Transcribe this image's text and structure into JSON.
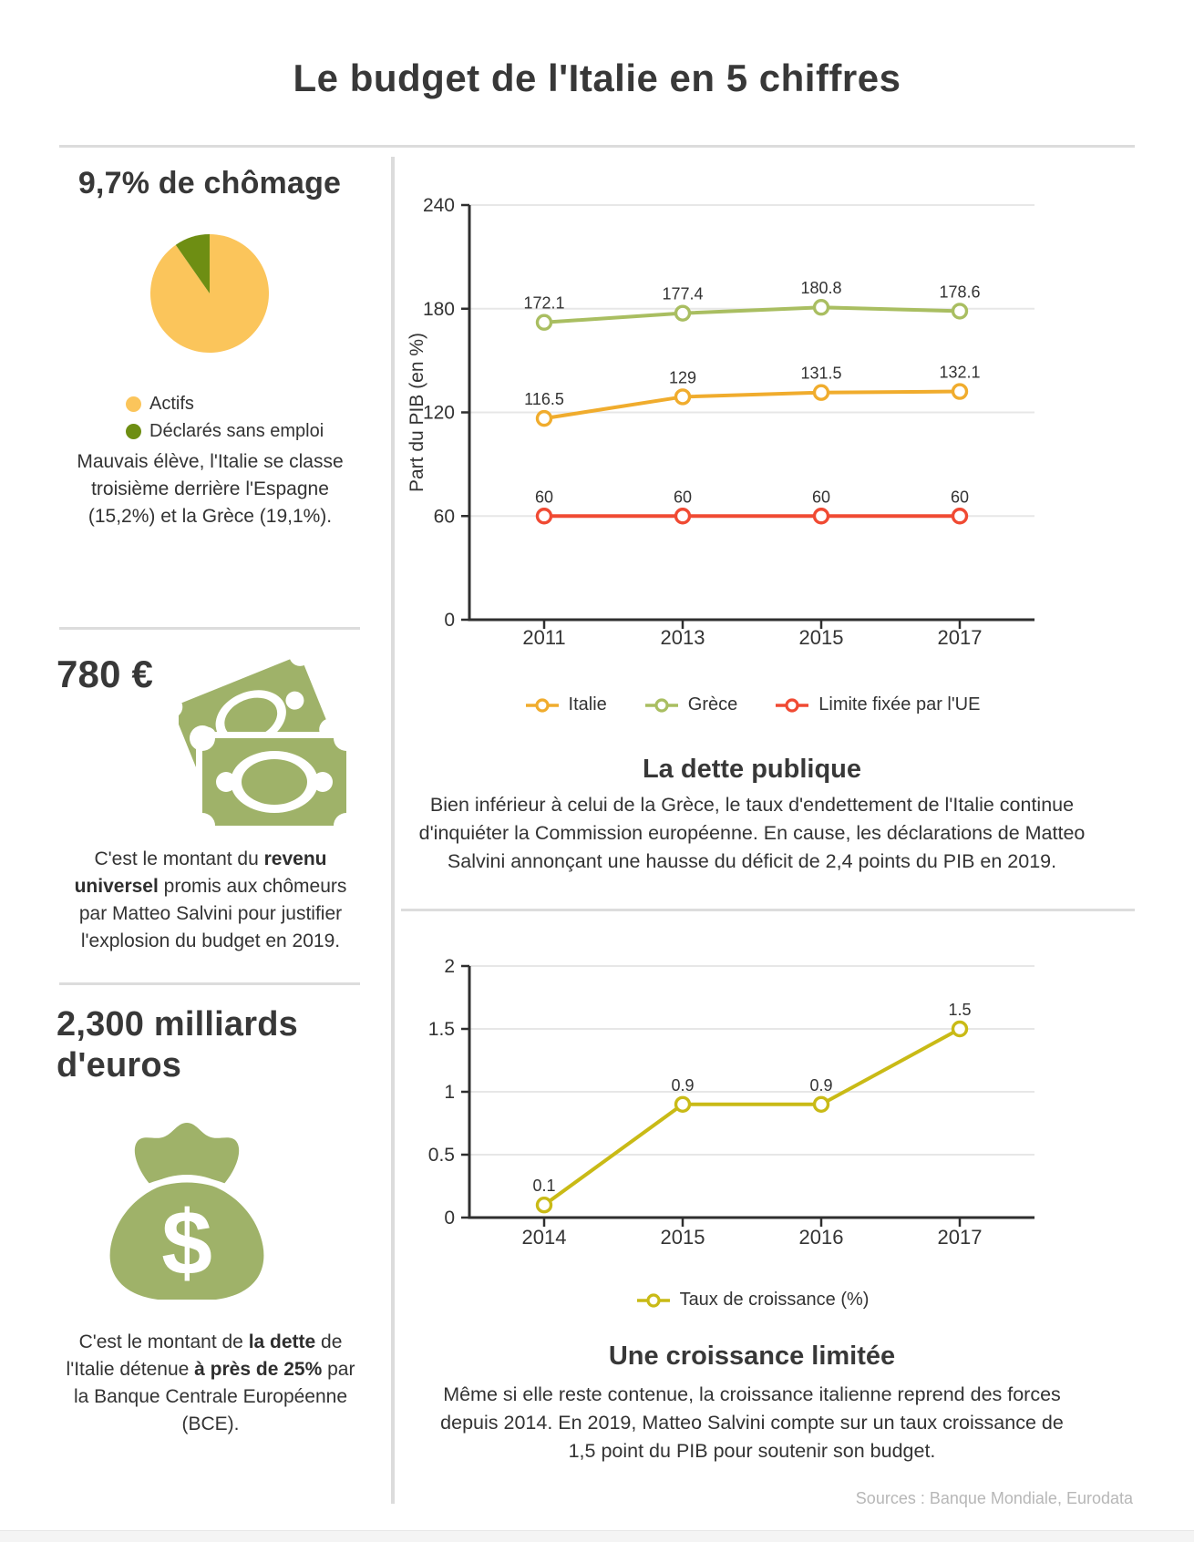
{
  "page": {
    "title": "Le budget de l'Italie en 5 chiffres",
    "sources": "Sources : Banque Mondiale, Eurodata"
  },
  "icons": {
    "money_bag_symbol": "$"
  },
  "sections": {
    "unemployment": {
      "heading": "9,7% de chômage",
      "caption": [
        {
          "text": "Mauvais élève, l'Italie se classe troisième derrière l'Espagne (15,2%) et la Grèce (19,1%)."
        }
      ]
    },
    "universal_income": {
      "heading": "780 €",
      "caption": [
        {
          "text": "C'est le montant du "
        },
        {
          "text": "revenu universel",
          "bold": true
        },
        {
          "text": " promis aux chômeurs par Matteo Salvini pour justifier l'explosion du budget en 2019."
        }
      ]
    },
    "debt_amount": {
      "heading": "2,300 milliards d'euros",
      "caption": [
        {
          "text": "C'est le montant de "
        },
        {
          "text": "la dette",
          "bold": true
        },
        {
          "text": " de l'Italie détenue "
        },
        {
          "text": "à près de 25%",
          "bold": true
        },
        {
          "text": " par la Banque Centrale Européenne (BCE)."
        }
      ]
    },
    "public_debt": {
      "heading": "La dette publique",
      "caption": [
        {
          "text": "Bien inférieur à celui de la Grèce, le taux d'endettement de l'Italie continue d'inquiéter la Commission européenne. En cause, les déclarations de Matteo Salvini annonçant une hausse du déficit de 2,4 points du PIB en 2019."
        }
      ]
    },
    "growth": {
      "heading": "Une croissance limitée",
      "caption": [
        {
          "text": "Même si elle reste contenue, la croissance italienne reprend des forces depuis 2014. En 2019, Matteo Salvini compte sur un taux croissance de 1,5 point du PIB pour soutenir son budget."
        }
      ]
    }
  },
  "chart_data": [
    {
      "id": "unemployment_pie",
      "type": "pie",
      "title": "9,7% de chômage",
      "labels": [
        "Actifs",
        "Déclarés sans emploi"
      ],
      "values": [
        90.3,
        9.7
      ],
      "colors": [
        "#FBC55B",
        "#6E8E13"
      ],
      "legend_position": "bottom"
    },
    {
      "id": "public_debt_lines",
      "type": "line",
      "title": "La dette publique",
      "categories": [
        "2011",
        "2013",
        "2015",
        "2017"
      ],
      "series": [
        {
          "name": "Italie",
          "color": "#F0AC2D",
          "values": [
            116.5,
            129,
            131.5,
            132.1
          ]
        },
        {
          "name": "Grèce",
          "color": "#A9BE61",
          "values": [
            172.1,
            177.4,
            180.8,
            178.6
          ]
        },
        {
          "name": "Limite fixée par l'UE",
          "color": "#F04A33",
          "values": [
            60,
            60,
            60,
            60
          ]
        }
      ],
      "xlabel": "",
      "ylabel": "Part du PIB (en %)",
      "ylim": [
        0,
        240
      ],
      "y_ticks": [
        0,
        60,
        120,
        180,
        240
      ],
      "grid": true,
      "legend_position": "bottom"
    },
    {
      "id": "growth_line",
      "type": "line",
      "title": "Une croissance limitée",
      "categories": [
        "2014",
        "2015",
        "2016",
        "2017"
      ],
      "series": [
        {
          "name": "Taux de croissance (%)",
          "color": "#C9BA16",
          "values": [
            0.1,
            0.9,
            0.9,
            1.5
          ]
        }
      ],
      "xlabel": "",
      "ylabel": "",
      "ylim": [
        0,
        2
      ],
      "y_ticks": [
        0,
        0.5,
        1,
        1.5,
        2
      ],
      "grid": true,
      "legend_position": "bottom"
    }
  ]
}
